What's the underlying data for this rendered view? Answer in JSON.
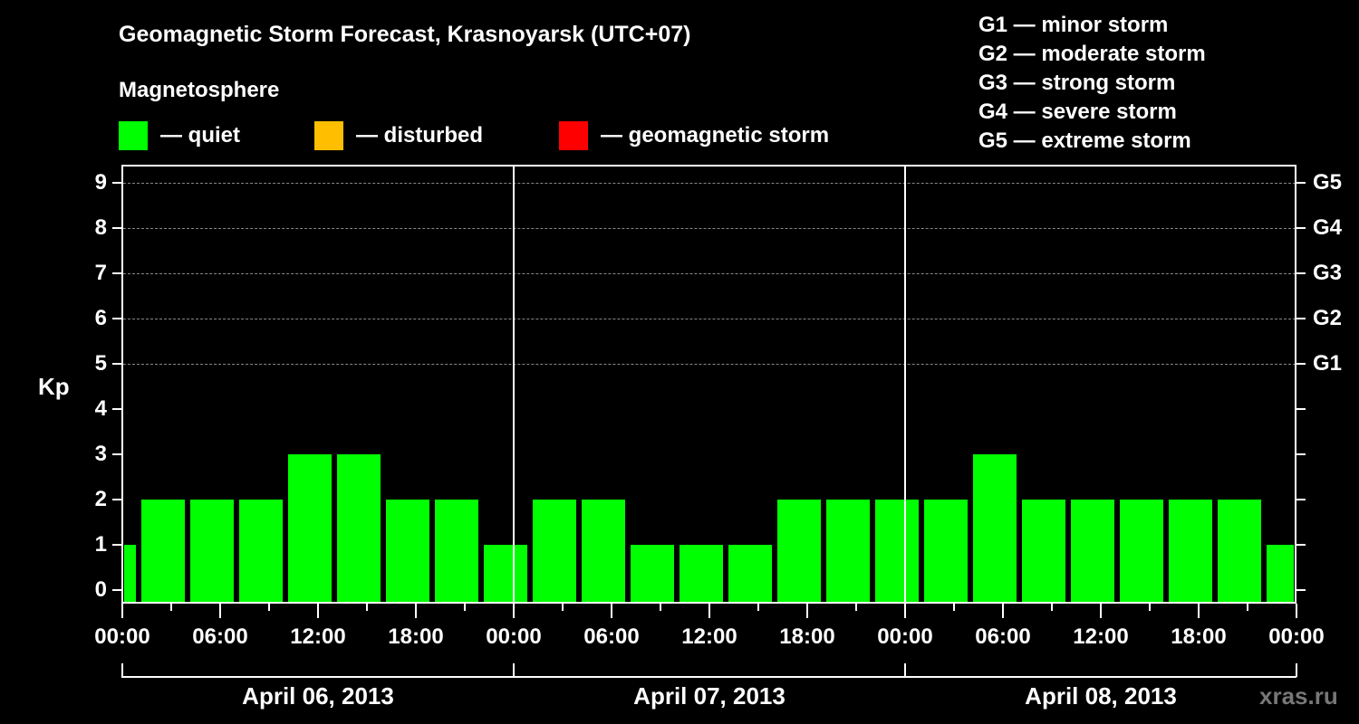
{
  "header": {
    "title": "Geomagnetic Storm Forecast, Krasnoyarsk (UTC+07)",
    "subtitle": "Magnetosphere"
  },
  "legend": [
    {
      "label": "— quiet",
      "color": "#00ff00"
    },
    {
      "label": "— disturbed",
      "color": "#ffbf00"
    },
    {
      "label": "— geomagnetic storm",
      "color": "#ff0000"
    }
  ],
  "storm_scale": [
    "G1 — minor storm",
    "G2 — moderate storm",
    "G3 — strong storm",
    "G4 — severe storm",
    "G5 — extreme storm"
  ],
  "watermark": "xras.ru",
  "chart_data": {
    "type": "bar",
    "title": "Geomagnetic Storm Forecast, Krasnoyarsk (UTC+07)",
    "xlabel": "",
    "ylabel": "Kp",
    "ylim": [
      0,
      9
    ],
    "yticks": [
      "0",
      "1",
      "2",
      "3",
      "4",
      "5",
      "6",
      "7",
      "8",
      "9"
    ],
    "right_axis_labels": [
      {
        "kp": 5,
        "label": "G1"
      },
      {
        "kp": 6,
        "label": "G2"
      },
      {
        "kp": 7,
        "label": "G3"
      },
      {
        "kp": 8,
        "label": "G4"
      },
      {
        "kp": 9,
        "label": "G5"
      }
    ],
    "xtick_labels": [
      "00:00",
      "06:00",
      "12:00",
      "18:00",
      "00:00",
      "06:00",
      "12:00",
      "18:00",
      "00:00",
      "06:00",
      "12:00",
      "18:00",
      "00:00"
    ],
    "day_labels": [
      "April 06, 2013",
      "April 07, 2013",
      "April 08, 2013"
    ],
    "grid": "dashed horizontal at Kp 5-9",
    "bin_hours": 3,
    "bins": [
      {
        "start": "Apr 05 22:00",
        "kp": 1
      },
      {
        "start": "Apr 06 01:00",
        "kp": 2
      },
      {
        "start": "Apr 06 04:00",
        "kp": 2
      },
      {
        "start": "Apr 06 07:00",
        "kp": 2
      },
      {
        "start": "Apr 06 10:00",
        "kp": 3
      },
      {
        "start": "Apr 06 13:00",
        "kp": 3
      },
      {
        "start": "Apr 06 16:00",
        "kp": 2
      },
      {
        "start": "Apr 06 19:00",
        "kp": 2
      },
      {
        "start": "Apr 06 22:00",
        "kp": 1
      },
      {
        "start": "Apr 07 01:00",
        "kp": 2
      },
      {
        "start": "Apr 07 04:00",
        "kp": 2
      },
      {
        "start": "Apr 07 07:00",
        "kp": 1
      },
      {
        "start": "Apr 07 10:00",
        "kp": 1
      },
      {
        "start": "Apr 07 13:00",
        "kp": 1
      },
      {
        "start": "Apr 07 16:00",
        "kp": 2
      },
      {
        "start": "Apr 07 19:00",
        "kp": 2
      },
      {
        "start": "Apr 07 22:00",
        "kp": 2
      },
      {
        "start": "Apr 08 01:00",
        "kp": 2
      },
      {
        "start": "Apr 08 04:00",
        "kp": 3
      },
      {
        "start": "Apr 08 07:00",
        "kp": 2
      },
      {
        "start": "Apr 08 10:00",
        "kp": 2
      },
      {
        "start": "Apr 08 13:00",
        "kp": 2
      },
      {
        "start": "Apr 08 16:00",
        "kp": 2
      },
      {
        "start": "Apr 08 19:00",
        "kp": 2
      },
      {
        "start": "Apr 08 22:00",
        "kp": 1
      }
    ],
    "series": [
      {
        "name": "Kp (quiet)",
        "color": "#00ff00"
      }
    ]
  }
}
